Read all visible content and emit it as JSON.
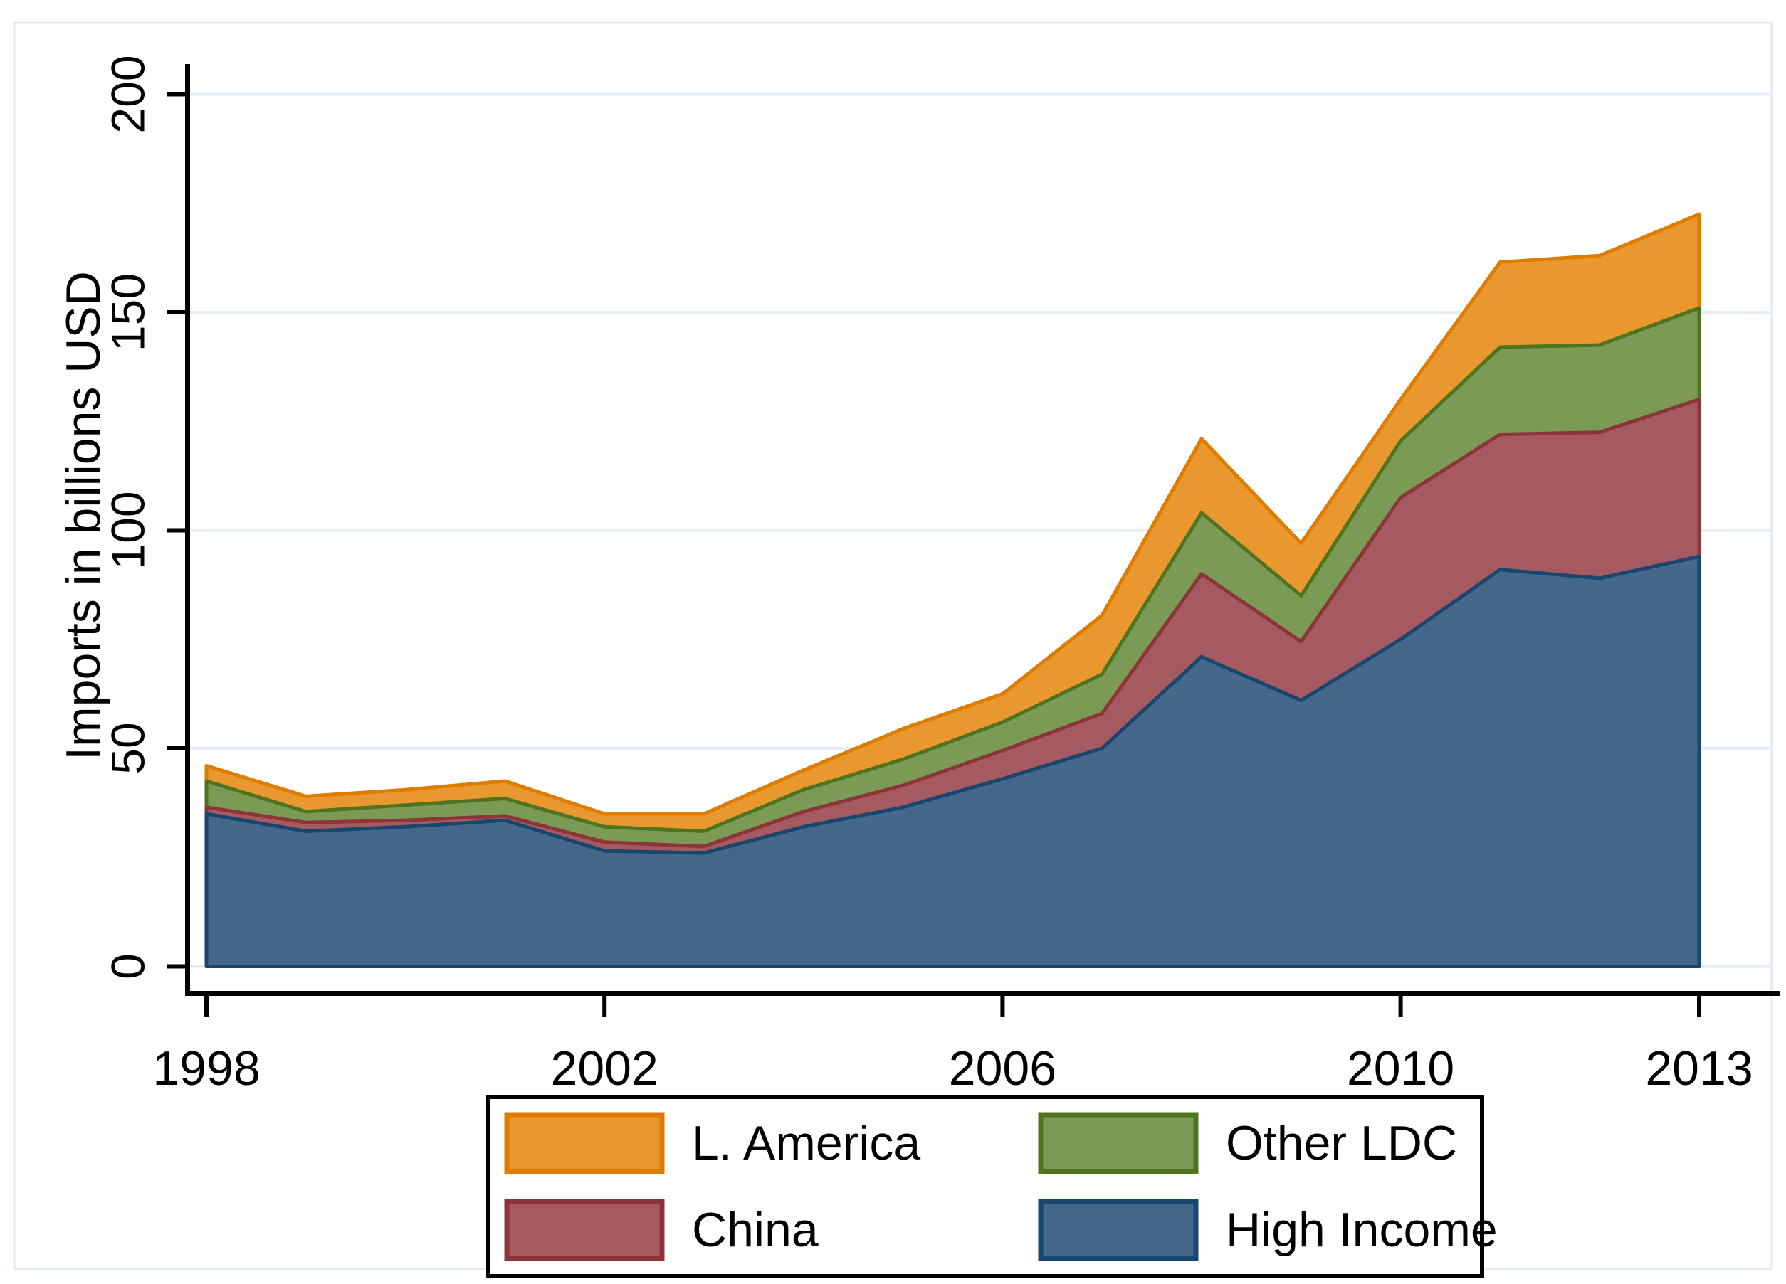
{
  "figure": {
    "background": "#ffffff",
    "outer_border_color": "#e2ebf1",
    "gridline_color": "#e4eef4",
    "axis_color": "#000000",
    "text_color": "#000000"
  },
  "y_axis": {
    "title": "Imports in billions USD",
    "ticks": [
      0,
      50,
      100,
      150,
      200
    ],
    "range": [
      0,
      200
    ]
  },
  "x_axis": {
    "ticks": [
      1998,
      2002,
      2006,
      2010,
      2013
    ],
    "range": [
      1998,
      2013
    ]
  },
  "legend": {
    "border_color": "#000000",
    "items": [
      "L. America",
      "Other LDC",
      "China",
      "High Income"
    ]
  },
  "chart_data": {
    "type": "area",
    "stacked": true,
    "title": "",
    "xlabel": "",
    "ylabel": "Imports in billions USD",
    "xlim": [
      1998,
      2013
    ],
    "ylim": [
      0,
      200
    ],
    "grid": true,
    "legend_position": "bottom",
    "x": [
      1998,
      1999,
      2000,
      2001,
      2002,
      2003,
      2004,
      2005,
      2006,
      2007,
      2008,
      2009,
      2010,
      2011,
      2012,
      2013
    ],
    "series": [
      {
        "name": "High Income",
        "fill": "#45678A",
        "border": "#17466E",
        "values": [
          35,
          31,
          32,
          33.5,
          26.5,
          26,
          32,
          36.5,
          43,
          50,
          71,
          61,
          75,
          91,
          89,
          94
        ]
      },
      {
        "name": "China",
        "fill": "#A45A60",
        "border": "#8D3439",
        "values": [
          1.5,
          2,
          1.5,
          1,
          2,
          1.5,
          3.5,
          5,
          6.5,
          8,
          19,
          13.5,
          32.5,
          31,
          33.5,
          36
        ]
      },
      {
        "name": "Other LDC",
        "fill": "#7B9A55",
        "border": "#4F7420",
        "values": [
          6,
          2.5,
          3.5,
          4,
          3.5,
          3.5,
          5,
          6,
          6.5,
          9,
          14,
          10.5,
          13,
          20,
          20,
          21
        ]
      },
      {
        "name": "L. America",
        "fill": "#E8982F",
        "border": "#DF7C00",
        "values": [
          3.5,
          3.5,
          3.5,
          4,
          3,
          4,
          4.5,
          7,
          6.5,
          13.5,
          17,
          12,
          9.5,
          19.5,
          20.5,
          21.5
        ]
      }
    ]
  }
}
